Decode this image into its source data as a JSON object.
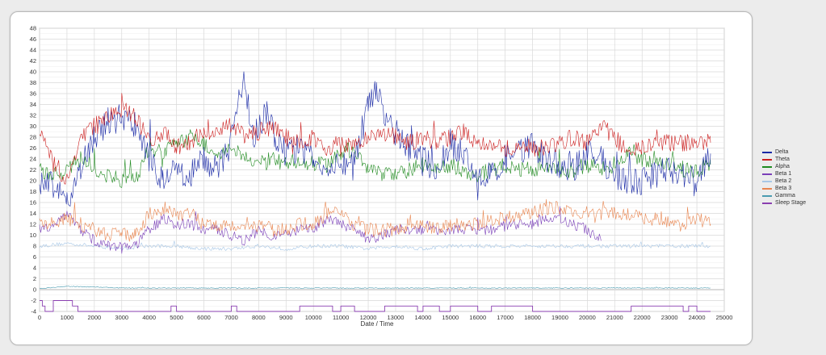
{
  "chart_data": {
    "type": "line",
    "title": "",
    "xlabel": "Date / Time",
    "ylabel": "",
    "xlim": [
      0,
      25000
    ],
    "ylim": [
      -4,
      48
    ],
    "x_ticks": [
      "0",
      "1000",
      "2000",
      "3000",
      "4000",
      "5000",
      "6000",
      "7000",
      "8000",
      "9000",
      "10000",
      "11000",
      "12000",
      "13000",
      "14000",
      "15000",
      "16000",
      "17000",
      "18000",
      "19000",
      "20000",
      "21000",
      "22000",
      "23000",
      "24000",
      "25000"
    ],
    "y_ticks": [
      "-4",
      "-2",
      "0",
      "2",
      "4",
      "6",
      "8",
      "10",
      "12",
      "14",
      "16",
      "18",
      "20",
      "22",
      "24",
      "26",
      "28",
      "30",
      "32",
      "34",
      "36",
      "38",
      "40",
      "42",
      "44",
      "46",
      "48"
    ],
    "grid": true,
    "legend_position": "right",
    "series": [
      {
        "name": "Delta",
        "color": "#1a2aa6",
        "x": [
          0,
          500,
          1000,
          1500,
          2000,
          2500,
          3000,
          3500,
          4000,
          4500,
          5000,
          5500,
          6000,
          6500,
          7000,
          7300,
          7500,
          7800,
          8000,
          8300,
          8600,
          9000,
          9500,
          10000,
          10500,
          11000,
          11500,
          12000,
          12300,
          12700,
          13000,
          13500,
          14000,
          14500,
          15000,
          15500,
          16000,
          16500,
          17000,
          17500,
          18000,
          18500,
          19000,
          19500,
          20000,
          20500,
          21000,
          21500,
          22000,
          22500,
          23000,
          23500,
          24000,
          24500
        ],
        "values": [
          20,
          19,
          16,
          22,
          28,
          31,
          32,
          30,
          24,
          20,
          22,
          21,
          24,
          22,
          27,
          36,
          38,
          28,
          30,
          33,
          28,
          25,
          26,
          24,
          22,
          23,
          24,
          35,
          37,
          30,
          29,
          26,
          24,
          22,
          27,
          25,
          20,
          21,
          24,
          25,
          27,
          24,
          23,
          22,
          25,
          24,
          21,
          20,
          20,
          21,
          22,
          21,
          20,
          25
        ]
      },
      {
        "name": "Theta",
        "color": "#cc1f1f",
        "x": [
          0,
          500,
          1000,
          1500,
          2000,
          2500,
          3000,
          3500,
          4000,
          4500,
          5000,
          5500,
          6000,
          6500,
          7000,
          7500,
          8000,
          8500,
          9000,
          9500,
          10000,
          10500,
          11000,
          11500,
          12000,
          12500,
          13000,
          13500,
          14000,
          14500,
          15000,
          15500,
          16000,
          16500,
          17000,
          17500,
          18000,
          18500,
          19000,
          19500,
          20000,
          20500,
          21000,
          21500,
          22000,
          22500,
          23000,
          23500,
          24000,
          24500
        ],
        "values": [
          29,
          23,
          20,
          28,
          30,
          32,
          33,
          32,
          27,
          29,
          26,
          27,
          29,
          29,
          30,
          28,
          29,
          30,
          28,
          27,
          28,
          26,
          27,
          26,
          28,
          29,
          28,
          27,
          28,
          27,
          28,
          29,
          27,
          27,
          26,
          26,
          26,
          26,
          27,
          28,
          27,
          30,
          28,
          25,
          26,
          27,
          27,
          27,
          27,
          27
        ]
      },
      {
        "name": "Alpha",
        "color": "#1f8a1f",
        "x": [
          0,
          500,
          1000,
          1500,
          2000,
          2500,
          3000,
          3500,
          4000,
          4500,
          5000,
          5500,
          6000,
          6500,
          7000,
          7500,
          8000,
          8500,
          9000,
          9500,
          10000,
          10500,
          11000,
          11500,
          12000,
          12500,
          13000,
          13500,
          14000,
          14500,
          15000,
          15500,
          16000,
          16500,
          17000,
          17500,
          18000,
          18500,
          19000,
          19500,
          20000,
          20500,
          21000,
          21500,
          22000,
          22500,
          23000,
          23500,
          24000,
          24500
        ],
        "values": [
          22,
          21,
          22,
          24,
          22,
          21,
          20,
          20,
          26,
          25,
          27,
          28,
          27,
          24,
          26,
          24,
          23,
          24,
          23,
          24,
          23,
          23,
          25,
          26,
          22,
          21,
          21,
          22,
          23,
          22,
          23,
          22,
          21,
          22,
          23,
          22,
          22,
          23,
          22,
          22,
          23,
          22,
          23,
          25,
          24,
          24,
          23,
          22,
          22,
          23
        ]
      },
      {
        "name": "Beta 1",
        "color": "#7a3fb8",
        "x": [
          0,
          500,
          1000,
          1500,
          2000,
          2500,
          3000,
          3500,
          4000,
          4500,
          5000,
          5500,
          6000,
          6500,
          7000,
          7500,
          8000,
          8500,
          9000,
          9500,
          10000,
          10500,
          11000,
          11500,
          12000,
          12500,
          13000,
          13500,
          14000,
          14500,
          15000,
          15500,
          16000,
          16500,
          17000,
          17500,
          18000,
          18500,
          19000,
          19500,
          20000,
          20500
        ],
        "values": [
          11,
          12,
          14,
          11,
          9,
          8,
          8,
          8,
          11,
          13,
          12,
          12,
          11,
          11,
          10,
          9,
          11,
          10,
          10,
          11,
          11,
          13,
          12,
          11,
          9,
          10,
          11,
          11,
          11,
          11,
          11,
          11,
          11,
          11,
          12,
          12,
          12,
          13,
          13,
          12,
          11,
          9
        ]
      },
      {
        "name": "Beta 2",
        "color": "#a7c7e6",
        "x": [
          0,
          1000,
          2000,
          3000,
          4000,
          5000,
          6000,
          7000,
          8000,
          9000,
          10000,
          11000,
          12000,
          13000,
          14000,
          15000,
          16000,
          17000,
          18000,
          19000,
          20000,
          21000,
          22000,
          23000,
          24000,
          24500
        ],
        "values": [
          8,
          8.5,
          8,
          7.5,
          8,
          8,
          7.5,
          7.5,
          8,
          7.5,
          8,
          8,
          7.5,
          8,
          7.5,
          8,
          8,
          8,
          8,
          8,
          8,
          8,
          8,
          8,
          8,
          8
        ]
      },
      {
        "name": "Beta 3",
        "color": "#e8854f",
        "x": [
          0,
          500,
          1000,
          1500,
          2000,
          2500,
          3000,
          3500,
          4000,
          4500,
          5000,
          5500,
          6000,
          6500,
          7000,
          7500,
          8000,
          8500,
          9000,
          9500,
          10000,
          10500,
          11000,
          11500,
          12000,
          12500,
          13000,
          13500,
          14000,
          14500,
          15000,
          15500,
          16000,
          16500,
          17000,
          17500,
          18000,
          18500,
          19000,
          19500,
          20000,
          20500,
          21000,
          21500,
          22000,
          22500,
          23000,
          23500,
          24000,
          24500
        ],
        "values": [
          12,
          12,
          13,
          12,
          11,
          10,
          10,
          10,
          14,
          15,
          14,
          14,
          12,
          12,
          12,
          11,
          12,
          11,
          11,
          12,
          12,
          14,
          14,
          12,
          11,
          11,
          11,
          12,
          12,
          11,
          12,
          12,
          12,
          13,
          13,
          14,
          14,
          15,
          15,
          14,
          14,
          14,
          14,
          14,
          13,
          13,
          12,
          12,
          13,
          12
        ]
      },
      {
        "name": "Gamma",
        "color": "#4a9bb0",
        "x": [
          0,
          500,
          1000,
          2000,
          3000,
          5000,
          8000,
          12000,
          16000,
          20000,
          24500
        ],
        "values": [
          0.2,
          0.4,
          0.6,
          0.5,
          0.3,
          0.3,
          0.3,
          0.3,
          0.3,
          0.3,
          0.3
        ]
      },
      {
        "name": "Sleep Stage",
        "color": "#8a3fb0",
        "step": true,
        "x": [
          0,
          100,
          200,
          500,
          1200,
          1400,
          3000,
          3500,
          4800,
          5000,
          5200,
          7000,
          7200,
          7600,
          8500,
          9500,
          10500,
          10700,
          11000,
          11500,
          12100,
          12600,
          13800,
          14000,
          14600,
          15000,
          15500,
          16000,
          16500,
          17000,
          18000,
          20300,
          21000,
          21600,
          22000,
          23500,
          23700,
          24000,
          24500
        ],
        "values": [
          -2,
          -3,
          -4,
          -2,
          -3,
          -4,
          -4,
          -4,
          -3,
          -4,
          -4,
          -3,
          -4,
          -4,
          -4,
          -3,
          -3,
          -4,
          -3,
          -4,
          -4,
          -3,
          -4,
          -3,
          -4,
          -3,
          -3,
          -4,
          -3,
          -3,
          -4,
          -4,
          -4,
          -3,
          -3,
          -4,
          -3,
          -4,
          -4
        ]
      }
    ]
  }
}
